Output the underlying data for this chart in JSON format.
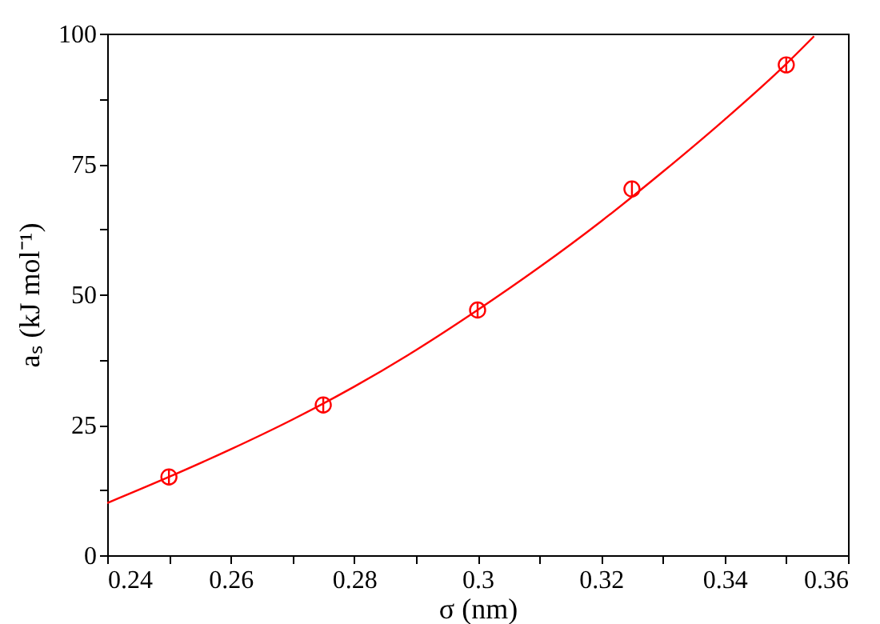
{
  "chart_data": {
    "type": "scatter",
    "xlabel": "σ (nm)",
    "ylabel": "aₛ (kJ mol⁻¹)",
    "xlim": [
      0.24,
      0.36
    ],
    "ylim": [
      0,
      100
    ],
    "xticks": [
      0.24,
      {
        "value": 0.25,
        "label": null
      },
      0.26,
      {
        "value": 0.27,
        "label": null
      },
      0.28,
      {
        "value": 0.29,
        "label": null
      },
      0.3,
      {
        "value": 0.31,
        "label": null
      },
      0.32,
      {
        "value": 0.33,
        "label": null
      },
      0.34,
      {
        "value": 0.35,
        "label": null
      },
      0.36
    ],
    "yticks": [
      0,
      {
        "value": 12.5,
        "label": null
      },
      25,
      {
        "value": 37.5,
        "label": null
      },
      50,
      {
        "value": 62.5,
        "label": null
      },
      75,
      {
        "value": 87.5,
        "label": null
      },
      100
    ],
    "grid": false,
    "marker": "circle",
    "series": [
      {
        "type": "line",
        "color": "#ff0000",
        "marker": "none",
        "x": [
          0.24,
          0.25,
          0.26,
          0.27,
          0.28,
          0.29,
          0.3,
          0.31,
          0.32,
          0.33,
          0.34,
          0.35,
          0.3545
        ],
        "values": [
          10,
          15,
          20.3,
          26,
          32.3,
          39.3,
          47,
          55.2,
          64,
          73.5,
          83.5,
          94.2,
          99.5
        ]
      },
      {
        "type": "scatter",
        "color": "#ff0000",
        "x": [
          0.25,
          0.275,
          0.3,
          0.325,
          0.35
        ],
        "values": [
          15,
          28.8,
          47,
          70.2,
          94
        ],
        "errors": [
          1.5,
          1.5,
          1.5,
          1.5,
          1.5
        ]
      }
    ]
  }
}
